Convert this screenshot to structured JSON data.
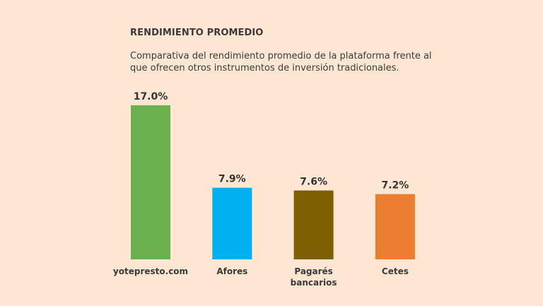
{
  "chart_data": {
    "type": "bar",
    "title": "RENDIMIENTO PROMEDIO",
    "subtitle": "Comparativa del rendimiento promedio de la plataforma frente al que ofrecen otros instrumentos de inversión tradicionales.",
    "categories": [
      [
        "yotepresto.com"
      ],
      [
        "Afores"
      ],
      [
        "Pagarés",
        "bancarios"
      ],
      [
        "Cetes"
      ]
    ],
    "values": [
      17.0,
      7.9,
      7.6,
      7.2
    ],
    "value_labels": [
      "17.0%",
      "7.9%",
      "7.6%",
      "7.2%"
    ],
    "colors": [
      "#6ab04c",
      "#00b0f0",
      "#7f6000",
      "#ed7d31"
    ],
    "ylim": [
      0,
      17.0
    ],
    "xlabel": "",
    "ylabel": ""
  }
}
